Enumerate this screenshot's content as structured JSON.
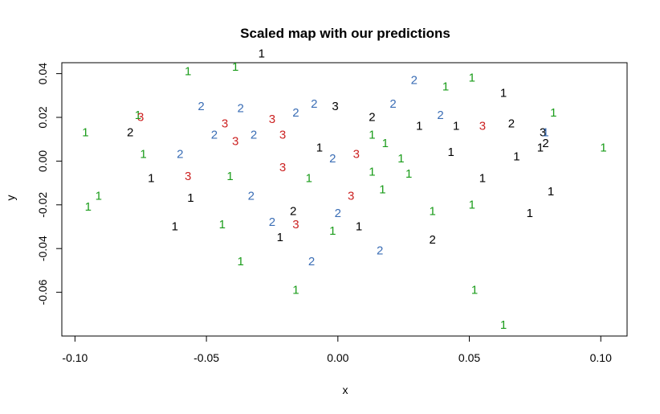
{
  "chart_data": {
    "type": "scatter",
    "title": "Scaled map with our predictions",
    "xlabel": "x",
    "ylabel": "y",
    "xlim": [
      -0.105,
      0.11
    ],
    "ylim": [
      -0.08,
      0.045
    ],
    "xticks": [
      -0.1,
      -0.05,
      0.0,
      0.05,
      0.1
    ],
    "xtick_labels": [
      "-0.10",
      "-0.05",
      "0.00",
      "0.05",
      "0.10"
    ],
    "yticks": [
      -0.06,
      -0.04,
      -0.02,
      0.0,
      0.02,
      0.04
    ],
    "ytick_labels": [
      "-0.06",
      "-0.04",
      "-0.02",
      "0.00",
      "0.02",
      "0.04"
    ],
    "grid": false,
    "legend": "none",
    "marker_colors": {
      "black": "#000000",
      "green": "#1a9c1a",
      "blue": "#3a6db5",
      "red": "#cc2222"
    },
    "points": [
      {
        "x": -0.029,
        "y": 0.049,
        "label": "1",
        "color": "black"
      },
      {
        "x": -0.039,
        "y": 0.043,
        "label": "1",
        "color": "green"
      },
      {
        "x": -0.057,
        "y": 0.041,
        "label": "1",
        "color": "green"
      },
      {
        "x": 0.029,
        "y": 0.037,
        "label": "2",
        "color": "blue"
      },
      {
        "x": 0.041,
        "y": 0.034,
        "label": "1",
        "color": "green"
      },
      {
        "x": 0.051,
        "y": 0.038,
        "label": "1",
        "color": "green"
      },
      {
        "x": 0.063,
        "y": 0.031,
        "label": "1",
        "color": "black"
      },
      {
        "x": -0.052,
        "y": 0.025,
        "label": "2",
        "color": "blue"
      },
      {
        "x": -0.037,
        "y": 0.024,
        "label": "2",
        "color": "blue"
      },
      {
        "x": -0.009,
        "y": 0.026,
        "label": "2",
        "color": "blue"
      },
      {
        "x": -0.016,
        "y": 0.022,
        "label": "2",
        "color": "blue"
      },
      {
        "x": -0.001,
        "y": 0.025,
        "label": "3",
        "color": "black"
      },
      {
        "x": 0.021,
        "y": 0.026,
        "label": "2",
        "color": "blue"
      },
      {
        "x": 0.013,
        "y": 0.02,
        "label": "2",
        "color": "black"
      },
      {
        "x": 0.039,
        "y": 0.021,
        "label": "2",
        "color": "blue"
      },
      {
        "x": 0.082,
        "y": 0.022,
        "label": "1",
        "color": "green"
      },
      {
        "x": -0.076,
        "y": 0.021,
        "label": "1",
        "color": "green"
      },
      {
        "x": -0.075,
        "y": 0.02,
        "label": "3",
        "color": "red"
      },
      {
        "x": -0.043,
        "y": 0.017,
        "label": "3",
        "color": "red"
      },
      {
        "x": -0.025,
        "y": 0.019,
        "label": "3",
        "color": "red"
      },
      {
        "x": -0.047,
        "y": 0.012,
        "label": "2",
        "color": "blue"
      },
      {
        "x": -0.032,
        "y": 0.012,
        "label": "2",
        "color": "blue"
      },
      {
        "x": -0.021,
        "y": 0.012,
        "label": "3",
        "color": "red"
      },
      {
        "x": -0.039,
        "y": 0.009,
        "label": "3",
        "color": "red"
      },
      {
        "x": 0.031,
        "y": 0.016,
        "label": "1",
        "color": "black"
      },
      {
        "x": 0.045,
        "y": 0.016,
        "label": "1",
        "color": "black"
      },
      {
        "x": 0.055,
        "y": 0.016,
        "label": "3",
        "color": "red"
      },
      {
        "x": 0.066,
        "y": 0.017,
        "label": "2",
        "color": "black"
      },
      {
        "x": -0.096,
        "y": 0.013,
        "label": "1",
        "color": "green"
      },
      {
        "x": -0.079,
        "y": 0.013,
        "label": "2",
        "color": "black"
      },
      {
        "x": 0.078,
        "y": 0.013,
        "label": "3",
        "color": "black"
      },
      {
        "x": 0.079,
        "y": 0.013,
        "label": "1",
        "color": "blue"
      },
      {
        "x": 0.079,
        "y": 0.008,
        "label": "2",
        "color": "black"
      },
      {
        "x": 0.077,
        "y": 0.006,
        "label": "1",
        "color": "black"
      },
      {
        "x": 0.013,
        "y": 0.012,
        "label": "1",
        "color": "green"
      },
      {
        "x": 0.018,
        "y": 0.008,
        "label": "1",
        "color": "green"
      },
      {
        "x": -0.007,
        "y": 0.006,
        "label": "1",
        "color": "black"
      },
      {
        "x": 0.043,
        "y": 0.004,
        "label": "1",
        "color": "black"
      },
      {
        "x": 0.101,
        "y": 0.006,
        "label": "1",
        "color": "green"
      },
      {
        "x": -0.074,
        "y": 0.003,
        "label": "1",
        "color": "green"
      },
      {
        "x": -0.06,
        "y": 0.003,
        "label": "2",
        "color": "blue"
      },
      {
        "x": -0.002,
        "y": 0.001,
        "label": "2",
        "color": "blue"
      },
      {
        "x": 0.007,
        "y": 0.003,
        "label": "3",
        "color": "red"
      },
      {
        "x": 0.024,
        "y": 0.001,
        "label": "1",
        "color": "green"
      },
      {
        "x": 0.068,
        "y": 0.002,
        "label": "1",
        "color": "black"
      },
      {
        "x": -0.021,
        "y": -0.003,
        "label": "3",
        "color": "red"
      },
      {
        "x": 0.013,
        "y": -0.005,
        "label": "1",
        "color": "green"
      },
      {
        "x": 0.027,
        "y": -0.006,
        "label": "1",
        "color": "green"
      },
      {
        "x": 0.055,
        "y": -0.008,
        "label": "1",
        "color": "black"
      },
      {
        "x": -0.071,
        "y": -0.008,
        "label": "1",
        "color": "black"
      },
      {
        "x": -0.057,
        "y": -0.007,
        "label": "3",
        "color": "red"
      },
      {
        "x": -0.041,
        "y": -0.007,
        "label": "1",
        "color": "green"
      },
      {
        "x": -0.011,
        "y": -0.008,
        "label": "1",
        "color": "green"
      },
      {
        "x": 0.017,
        "y": -0.013,
        "label": "1",
        "color": "green"
      },
      {
        "x": -0.091,
        "y": -0.016,
        "label": "1",
        "color": "green"
      },
      {
        "x": -0.056,
        "y": -0.017,
        "label": "1",
        "color": "black"
      },
      {
        "x": -0.033,
        "y": -0.016,
        "label": "2",
        "color": "blue"
      },
      {
        "x": 0.005,
        "y": -0.016,
        "label": "3",
        "color": "red"
      },
      {
        "x": 0.081,
        "y": -0.014,
        "label": "1",
        "color": "black"
      },
      {
        "x": -0.095,
        "y": -0.021,
        "label": "1",
        "color": "green"
      },
      {
        "x": 0.051,
        "y": -0.02,
        "label": "1",
        "color": "green"
      },
      {
        "x": -0.017,
        "y": -0.023,
        "label": "2",
        "color": "black"
      },
      {
        "x": 0.0,
        "y": -0.024,
        "label": "2",
        "color": "blue"
      },
      {
        "x": 0.036,
        "y": -0.023,
        "label": "1",
        "color": "green"
      },
      {
        "x": 0.073,
        "y": -0.024,
        "label": "1",
        "color": "black"
      },
      {
        "x": -0.062,
        "y": -0.03,
        "label": "1",
        "color": "black"
      },
      {
        "x": -0.044,
        "y": -0.029,
        "label": "1",
        "color": "green"
      },
      {
        "x": -0.025,
        "y": -0.028,
        "label": "2",
        "color": "blue"
      },
      {
        "x": -0.016,
        "y": -0.029,
        "label": "3",
        "color": "red"
      },
      {
        "x": -0.002,
        "y": -0.032,
        "label": "1",
        "color": "green"
      },
      {
        "x": 0.008,
        "y": -0.03,
        "label": "1",
        "color": "black"
      },
      {
        "x": -0.022,
        "y": -0.035,
        "label": "1",
        "color": "black"
      },
      {
        "x": 0.036,
        "y": -0.036,
        "label": "2",
        "color": "black"
      },
      {
        "x": 0.016,
        "y": -0.041,
        "label": "2",
        "color": "blue"
      },
      {
        "x": -0.037,
        "y": -0.046,
        "label": "1",
        "color": "green"
      },
      {
        "x": -0.01,
        "y": -0.046,
        "label": "2",
        "color": "blue"
      },
      {
        "x": -0.016,
        "y": -0.059,
        "label": "1",
        "color": "green"
      },
      {
        "x": 0.052,
        "y": -0.059,
        "label": "1",
        "color": "green"
      },
      {
        "x": 0.063,
        "y": -0.075,
        "label": "1",
        "color": "green"
      }
    ]
  }
}
